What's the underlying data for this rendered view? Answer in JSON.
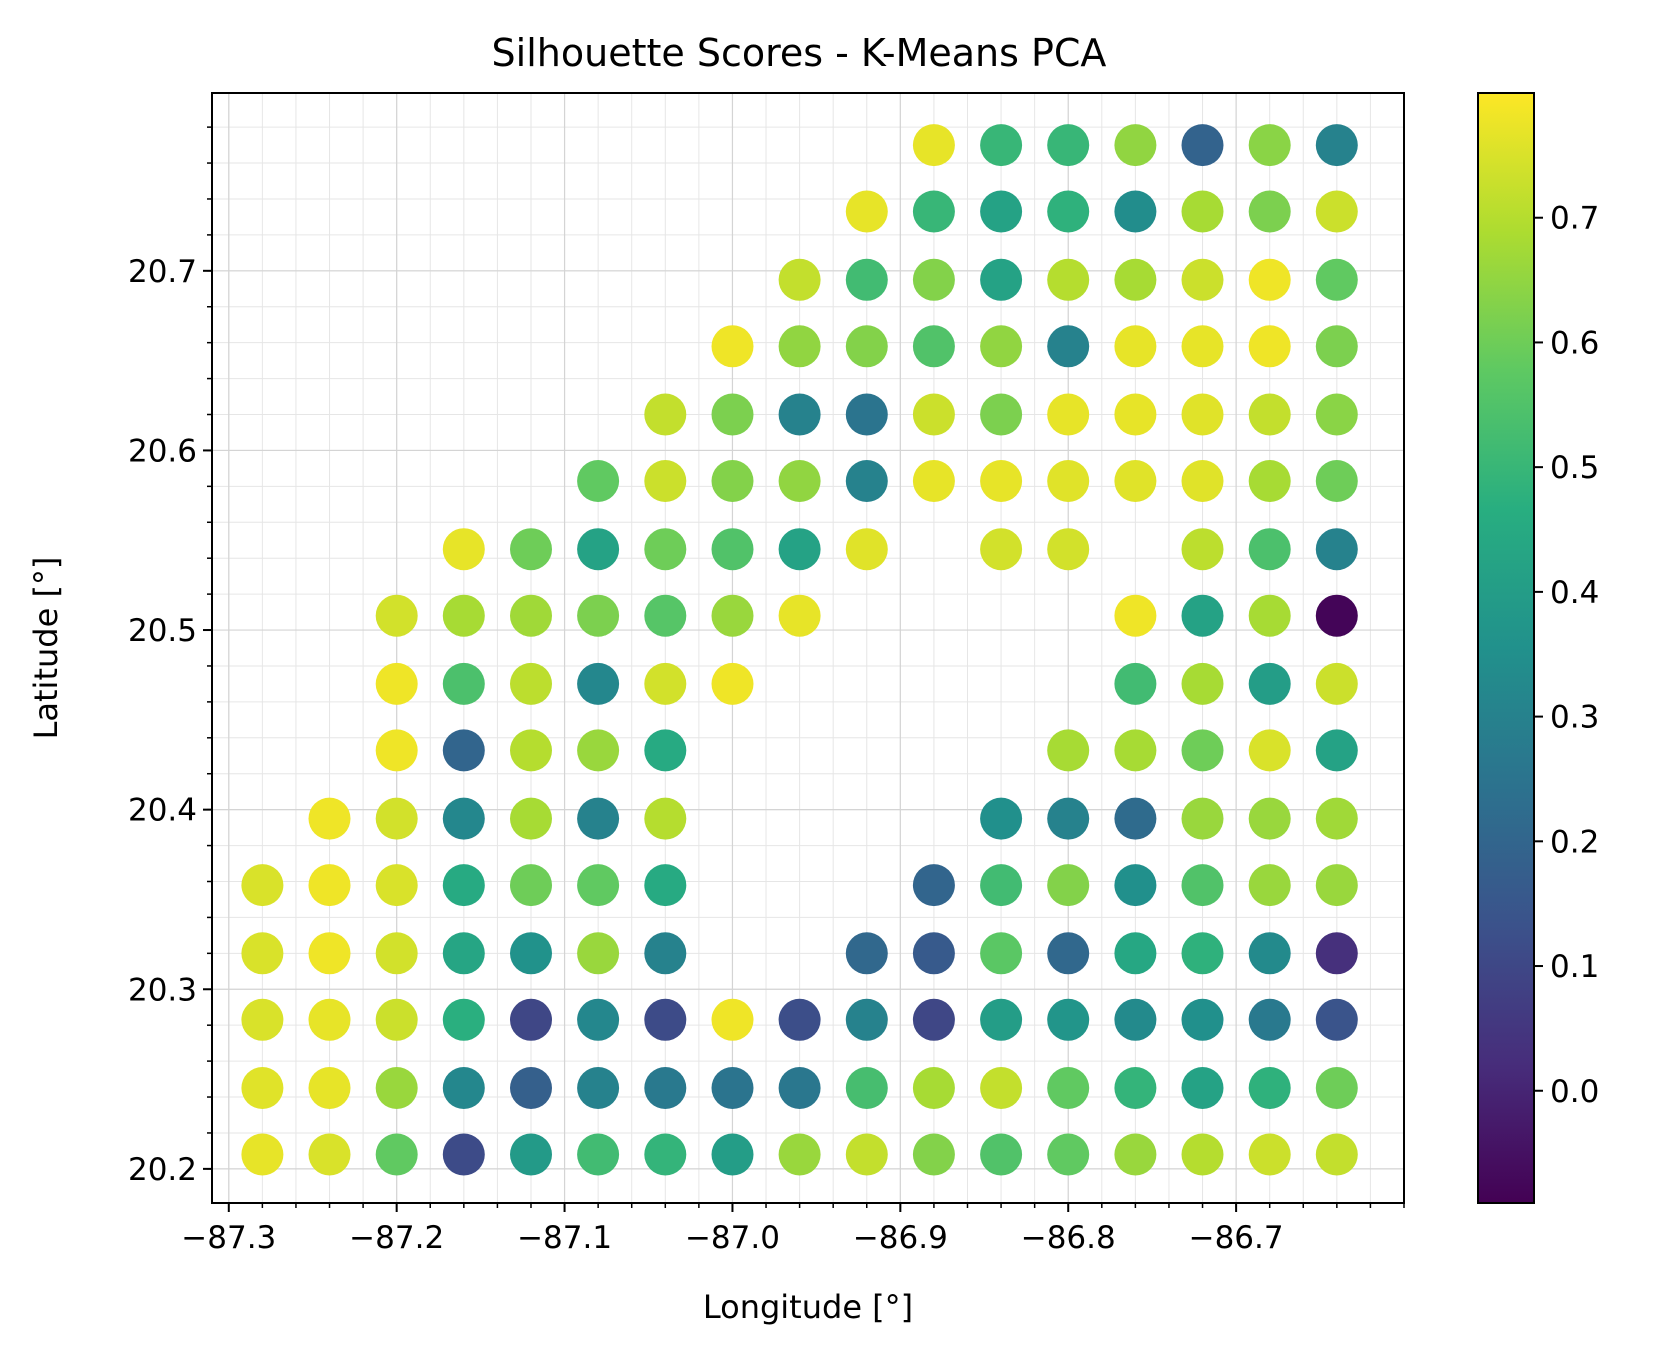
{
  "chart_data": {
    "type": "scatter",
    "title": "Silhouette Scores - K-Means PCA",
    "xlabel": "Longitude [°]",
    "ylabel": "Latitude [°]",
    "xlim": [
      -87.31,
      -86.6
    ],
    "ylim": [
      20.181,
      20.799
    ],
    "xticks": [
      -87.3,
      -87.2,
      -87.1,
      -87.0,
      -86.9,
      -86.8,
      -86.7
    ],
    "xtick_labels": [
      "−87.3",
      "−87.2",
      "−87.1",
      "−87.0",
      "−86.9",
      "−86.8",
      "−86.7"
    ],
    "yticks": [
      20.2,
      20.3,
      20.4,
      20.5,
      20.6,
      20.7
    ],
    "ytick_labels": [
      "20.2",
      "20.3",
      "20.4",
      "20.5",
      "20.6",
      "20.7"
    ],
    "grid": true,
    "colormap": "viridis",
    "colorbar": {
      "vmin": -0.09,
      "vmax": 0.8,
      "ticks": [
        0.0,
        0.1,
        0.2,
        0.3,
        0.4,
        0.5,
        0.6,
        0.7
      ],
      "tick_labels": [
        "0.0",
        "0.1",
        "0.2",
        "0.3",
        "0.4",
        "0.5",
        "0.6",
        "0.7"
      ]
    },
    "grid_lon": [
      -87.28,
      -87.24,
      -87.2,
      -87.16,
      -87.12,
      -87.08,
      -87.04,
      -87.0,
      -86.96,
      -86.92,
      -86.88,
      -86.84,
      -86.8,
      -86.76,
      -86.72,
      -86.68,
      -86.64
    ],
    "grid_lat": [
      20.77,
      20.733,
      20.695,
      20.658,
      20.62,
      20.583,
      20.545,
      20.508,
      20.47,
      20.433,
      20.395,
      20.358,
      20.32,
      20.283,
      20.245,
      20.208
    ],
    "values_by_row": [
      [
        null,
        null,
        null,
        null,
        null,
        null,
        null,
        null,
        null,
        null,
        0.77,
        0.5,
        0.5,
        0.65,
        0.19,
        0.64,
        0.3
      ],
      [
        null,
        null,
        null,
        null,
        null,
        null,
        null,
        null,
        null,
        0.77,
        0.5,
        0.42,
        0.48,
        0.34,
        0.68,
        0.62,
        0.73
      ],
      [
        null,
        null,
        null,
        null,
        null,
        null,
        null,
        null,
        0.72,
        0.52,
        0.63,
        0.42,
        0.7,
        0.68,
        0.73,
        0.78,
        0.58
      ],
      [
        null,
        null,
        null,
        null,
        null,
        null,
        null,
        0.78,
        0.65,
        0.63,
        0.55,
        0.65,
        0.3,
        0.77,
        0.77,
        0.78,
        0.62
      ],
      [
        null,
        null,
        null,
        null,
        null,
        null,
        0.72,
        0.62,
        0.3,
        0.25,
        0.73,
        0.62,
        0.77,
        0.77,
        0.76,
        0.72,
        0.64
      ],
      [
        null,
        null,
        null,
        null,
        null,
        0.58,
        0.73,
        0.63,
        0.65,
        0.3,
        0.77,
        0.77,
        0.76,
        0.76,
        0.76,
        0.68,
        0.6
      ],
      [
        null,
        null,
        null,
        0.77,
        0.6,
        0.42,
        0.6,
        0.55,
        0.42,
        0.76,
        null,
        0.74,
        0.74,
        null,
        0.71,
        0.54,
        0.3
      ],
      [
        null,
        null,
        0.74,
        0.68,
        0.67,
        0.62,
        0.56,
        0.66,
        0.77,
        null,
        null,
        null,
        null,
        0.78,
        0.42,
        0.68,
        -0.08
      ],
      [
        null,
        null,
        0.78,
        0.54,
        0.71,
        0.32,
        0.74,
        0.78,
        null,
        null,
        null,
        null,
        null,
        0.52,
        0.68,
        0.4,
        0.73
      ],
      [
        null,
        null,
        0.78,
        0.2,
        0.7,
        0.66,
        0.45,
        null,
        null,
        null,
        null,
        null,
        0.68,
        0.68,
        0.6,
        0.75,
        0.42
      ],
      [
        null,
        0.78,
        0.74,
        0.32,
        0.68,
        0.3,
        0.7,
        null,
        null,
        null,
        null,
        0.35,
        0.3,
        0.22,
        0.66,
        0.66,
        0.67
      ],
      [
        0.75,
        0.78,
        0.75,
        0.45,
        0.6,
        0.58,
        0.45,
        null,
        null,
        null,
        0.2,
        0.52,
        0.63,
        0.35,
        0.55,
        0.66,
        0.66
      ],
      [
        0.75,
        0.78,
        0.74,
        0.43,
        0.36,
        0.66,
        0.3,
        null,
        null,
        0.21,
        0.16,
        0.57,
        0.21,
        0.44,
        0.48,
        0.33,
        0.03
      ],
      [
        0.75,
        0.77,
        0.73,
        0.47,
        0.1,
        0.32,
        0.11,
        0.78,
        0.12,
        0.3,
        0.1,
        0.4,
        0.37,
        0.33,
        0.35,
        0.27,
        0.14
      ],
      [
        0.76,
        0.77,
        0.66,
        0.32,
        0.18,
        0.3,
        0.27,
        0.25,
        0.26,
        0.53,
        0.68,
        0.72,
        0.58,
        0.49,
        0.42,
        0.48,
        0.6
      ],
      [
        0.77,
        0.75,
        0.58,
        0.11,
        0.39,
        0.52,
        0.49,
        0.4,
        0.66,
        0.72,
        0.63,
        0.55,
        0.58,
        0.66,
        0.7,
        0.73,
        0.72
      ]
    ]
  }
}
